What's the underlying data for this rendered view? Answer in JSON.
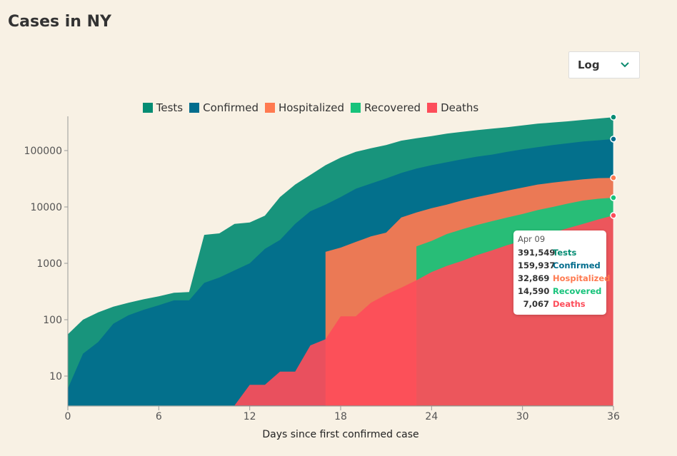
{
  "page": {
    "title": "Cases in NY"
  },
  "scale_select": {
    "value": "Log",
    "icon": "chevron-down-icon"
  },
  "tooltip": {
    "date": "Apr 09",
    "rows": [
      {
        "value": "391,549",
        "label": "Tests"
      },
      {
        "value": "159,937",
        "label": "Confirmed"
      },
      {
        "value": "32,869",
        "label": "Hospitalized"
      },
      {
        "value": "14,590",
        "label": "Recovered"
      },
      {
        "value": "7,067",
        "label": "Deaths"
      }
    ]
  },
  "chart_data": {
    "type": "area",
    "title": "Cases in NY",
    "xlabel": "Days since first confirmed case",
    "ylabel": "",
    "yscale": "log",
    "xlim": [
      0,
      36
    ],
    "ylim": [
      3,
      400000
    ],
    "xticks": [
      0,
      6,
      12,
      18,
      24,
      30,
      36
    ],
    "yticks": [
      10,
      100,
      1000,
      10000,
      100000
    ],
    "ytick_labels": [
      "10",
      "100",
      "1000",
      "10000",
      "100000"
    ],
    "legend_position": "top",
    "grid": false,
    "series": [
      {
        "name": "Tests",
        "color": "#048c73",
        "x": [
          0,
          1,
          2,
          3,
          4,
          5,
          6,
          7,
          8,
          9,
          10,
          11,
          12,
          13,
          14,
          15,
          16,
          17,
          18,
          19,
          20,
          21,
          22,
          23,
          24,
          25,
          26,
          27,
          28,
          29,
          30,
          31,
          32,
          33,
          34,
          35,
          36
        ],
        "values": [
          55,
          100,
          135,
          170,
          200,
          230,
          260,
          300,
          310,
          3200,
          3400,
          5000,
          5300,
          7000,
          15000,
          25000,
          37000,
          55000,
          75000,
          95000,
          110000,
          125000,
          150000,
          165000,
          180000,
          200000,
          215000,
          230000,
          245000,
          260000,
          280000,
          300000,
          315000,
          330000,
          350000,
          370000,
          391549
        ]
      },
      {
        "name": "Confirmed",
        "color": "#026d8d",
        "x": [
          0,
          1,
          2,
          3,
          4,
          5,
          6,
          7,
          8,
          9,
          10,
          11,
          12,
          13,
          14,
          15,
          16,
          17,
          18,
          19,
          20,
          21,
          22,
          23,
          24,
          25,
          26,
          27,
          28,
          29,
          30,
          31,
          32,
          33,
          34,
          35,
          36
        ],
        "values": [
          6,
          25,
          40,
          85,
          120,
          150,
          180,
          220,
          220,
          450,
          560,
          750,
          1000,
          1800,
          2600,
          5000,
          8400,
          11000,
          15000,
          21000,
          26000,
          32000,
          40000,
          48000,
          55000,
          62000,
          70000,
          78000,
          85000,
          95000,
          105000,
          115000,
          125000,
          135000,
          145000,
          152000,
          159937
        ]
      },
      {
        "name": "Hospitalized",
        "color": "#ff7a50",
        "x": [
          17,
          18,
          19,
          20,
          21,
          22,
          23,
          24,
          25,
          26,
          27,
          28,
          29,
          30,
          31,
          32,
          33,
          34,
          35,
          36
        ],
        "values": [
          1600,
          1900,
          2400,
          3000,
          3500,
          6500,
          8000,
          9500,
          11000,
          13000,
          15000,
          17000,
          19500,
          22000,
          25000,
          27000,
          29000,
          31000,
          32500,
          32869
        ]
      },
      {
        "name": "Recovered",
        "color": "#17c37b",
        "x": [
          23,
          24,
          25,
          26,
          27,
          28,
          29,
          30,
          31,
          32,
          33,
          34,
          35,
          36
        ],
        "values": [
          2000,
          2500,
          3300,
          4000,
          4800,
          5600,
          6500,
          7500,
          8800,
          10000,
          11500,
          13000,
          14000,
          14590
        ]
      },
      {
        "name": "Deaths",
        "color": "#fd4d5a",
        "x": [
          11,
          12,
          13,
          14,
          15,
          16,
          17,
          18,
          19,
          20,
          21,
          22,
          23,
          24,
          25,
          26,
          27,
          28,
          29,
          30,
          31,
          32,
          33,
          34,
          35,
          36
        ],
        "values": [
          3,
          7,
          7,
          12,
          12,
          35,
          45,
          115,
          115,
          200,
          280,
          370,
          500,
          700,
          900,
          1100,
          1400,
          1700,
          2100,
          2500,
          3000,
          3500,
          4200,
          5000,
          6000,
          7067
        ]
      }
    ]
  }
}
